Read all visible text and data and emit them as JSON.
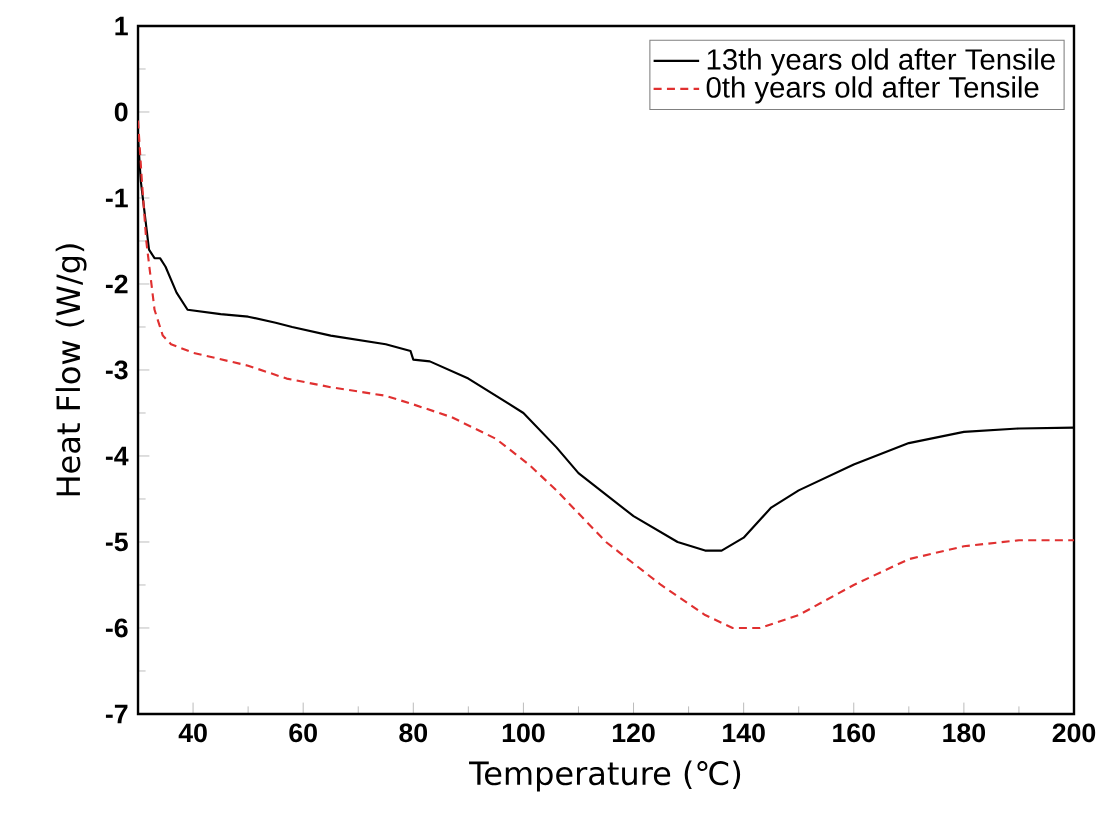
{
  "chart_data": {
    "type": "line",
    "xlabel": "Temperature (℃)",
    "ylabel": "Heat Flow (W/g)",
    "xlim": [
      30,
      200
    ],
    "ylim": [
      -7,
      1
    ],
    "xticks": [
      40,
      60,
      80,
      100,
      120,
      140,
      160,
      180,
      200
    ],
    "yticks": [
      -7,
      -6,
      -5,
      -4,
      -3,
      -2,
      -1,
      0,
      1
    ],
    "legend": "top right",
    "grid": false,
    "series": [
      {
        "name": "13th years old after Tensile",
        "color": "#000000",
        "line_style": "solid",
        "x": [
          30,
          30.5,
          32,
          33,
          34,
          35,
          37,
          39,
          45,
          50,
          55,
          58,
          65,
          75,
          79.5,
          80,
          83,
          90,
          100,
          106,
          110,
          120,
          128,
          133,
          136,
          140,
          145,
          150,
          160,
          170,
          180,
          190,
          200
        ],
        "values": [
          -0.3,
          -0.8,
          -1.6,
          -1.7,
          -1.7,
          -1.8,
          -2.1,
          -2.3,
          -2.35,
          -2.38,
          -2.45,
          -2.5,
          -2.6,
          -2.7,
          -2.78,
          -2.88,
          -2.9,
          -3.1,
          -3.5,
          -3.9,
          -4.2,
          -4.7,
          -5.0,
          -5.1,
          -5.1,
          -4.95,
          -4.6,
          -4.4,
          -4.1,
          -3.85,
          -3.72,
          -3.68,
          -3.67
        ]
      },
      {
        "name": "0th years old after Tensile",
        "color": "#e03030",
        "line_style": "dashed",
        "x": [
          30,
          30.7,
          31.5,
          33,
          34.5,
          36,
          40,
          50,
          57,
          65,
          70,
          75,
          80,
          87,
          95,
          101,
          106,
          115,
          125,
          133,
          138,
          143,
          150,
          160,
          170,
          180,
          190,
          200
        ],
        "values": [
          -0.1,
          -0.8,
          -1.5,
          -2.3,
          -2.6,
          -2.7,
          -2.8,
          -2.95,
          -3.1,
          -3.2,
          -3.25,
          -3.3,
          -3.4,
          -3.55,
          -3.8,
          -4.1,
          -4.4,
          -5.0,
          -5.5,
          -5.85,
          -6.0,
          -6.0,
          -5.85,
          -5.5,
          -5.2,
          -5.05,
          -4.98,
          -4.98
        ]
      }
    ]
  }
}
